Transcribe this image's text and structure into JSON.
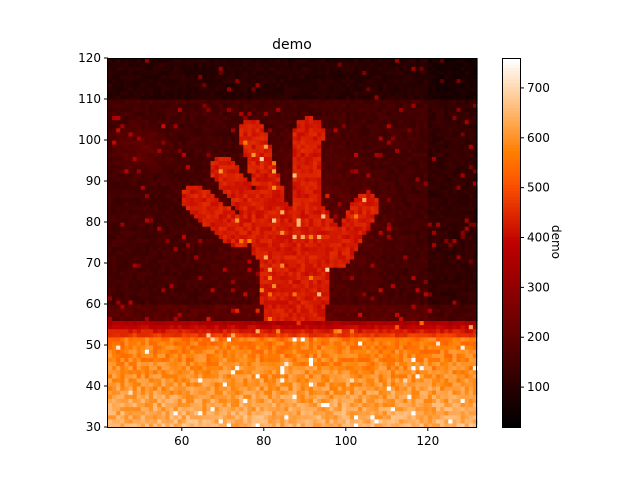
{
  "chart_data": {
    "type": "heatmap",
    "title": "demo",
    "xlabel": "",
    "ylabel": "",
    "xlim": [
      42,
      132
    ],
    "ylim": [
      30,
      120
    ],
    "x_ticks": [
      60,
      80,
      100,
      120
    ],
    "y_ticks": [
      30,
      40,
      50,
      60,
      70,
      80,
      90,
      100,
      110,
      120
    ],
    "grid": false,
    "colormap": "gist_heat",
    "colorbar": {
      "label": "demo",
      "range": [
        20,
        760
      ],
      "ticks": [
        100,
        200,
        300,
        400,
        500,
        600,
        700
      ]
    },
    "image_grid": {
      "nx": 90,
      "ny": 90,
      "description_values": {
        "background_min": 20,
        "hand_level": 430,
        "table_level": 560,
        "max": 760
      }
    }
  },
  "colors": {
    "axis": "#000000",
    "background": "#ffffff"
  }
}
